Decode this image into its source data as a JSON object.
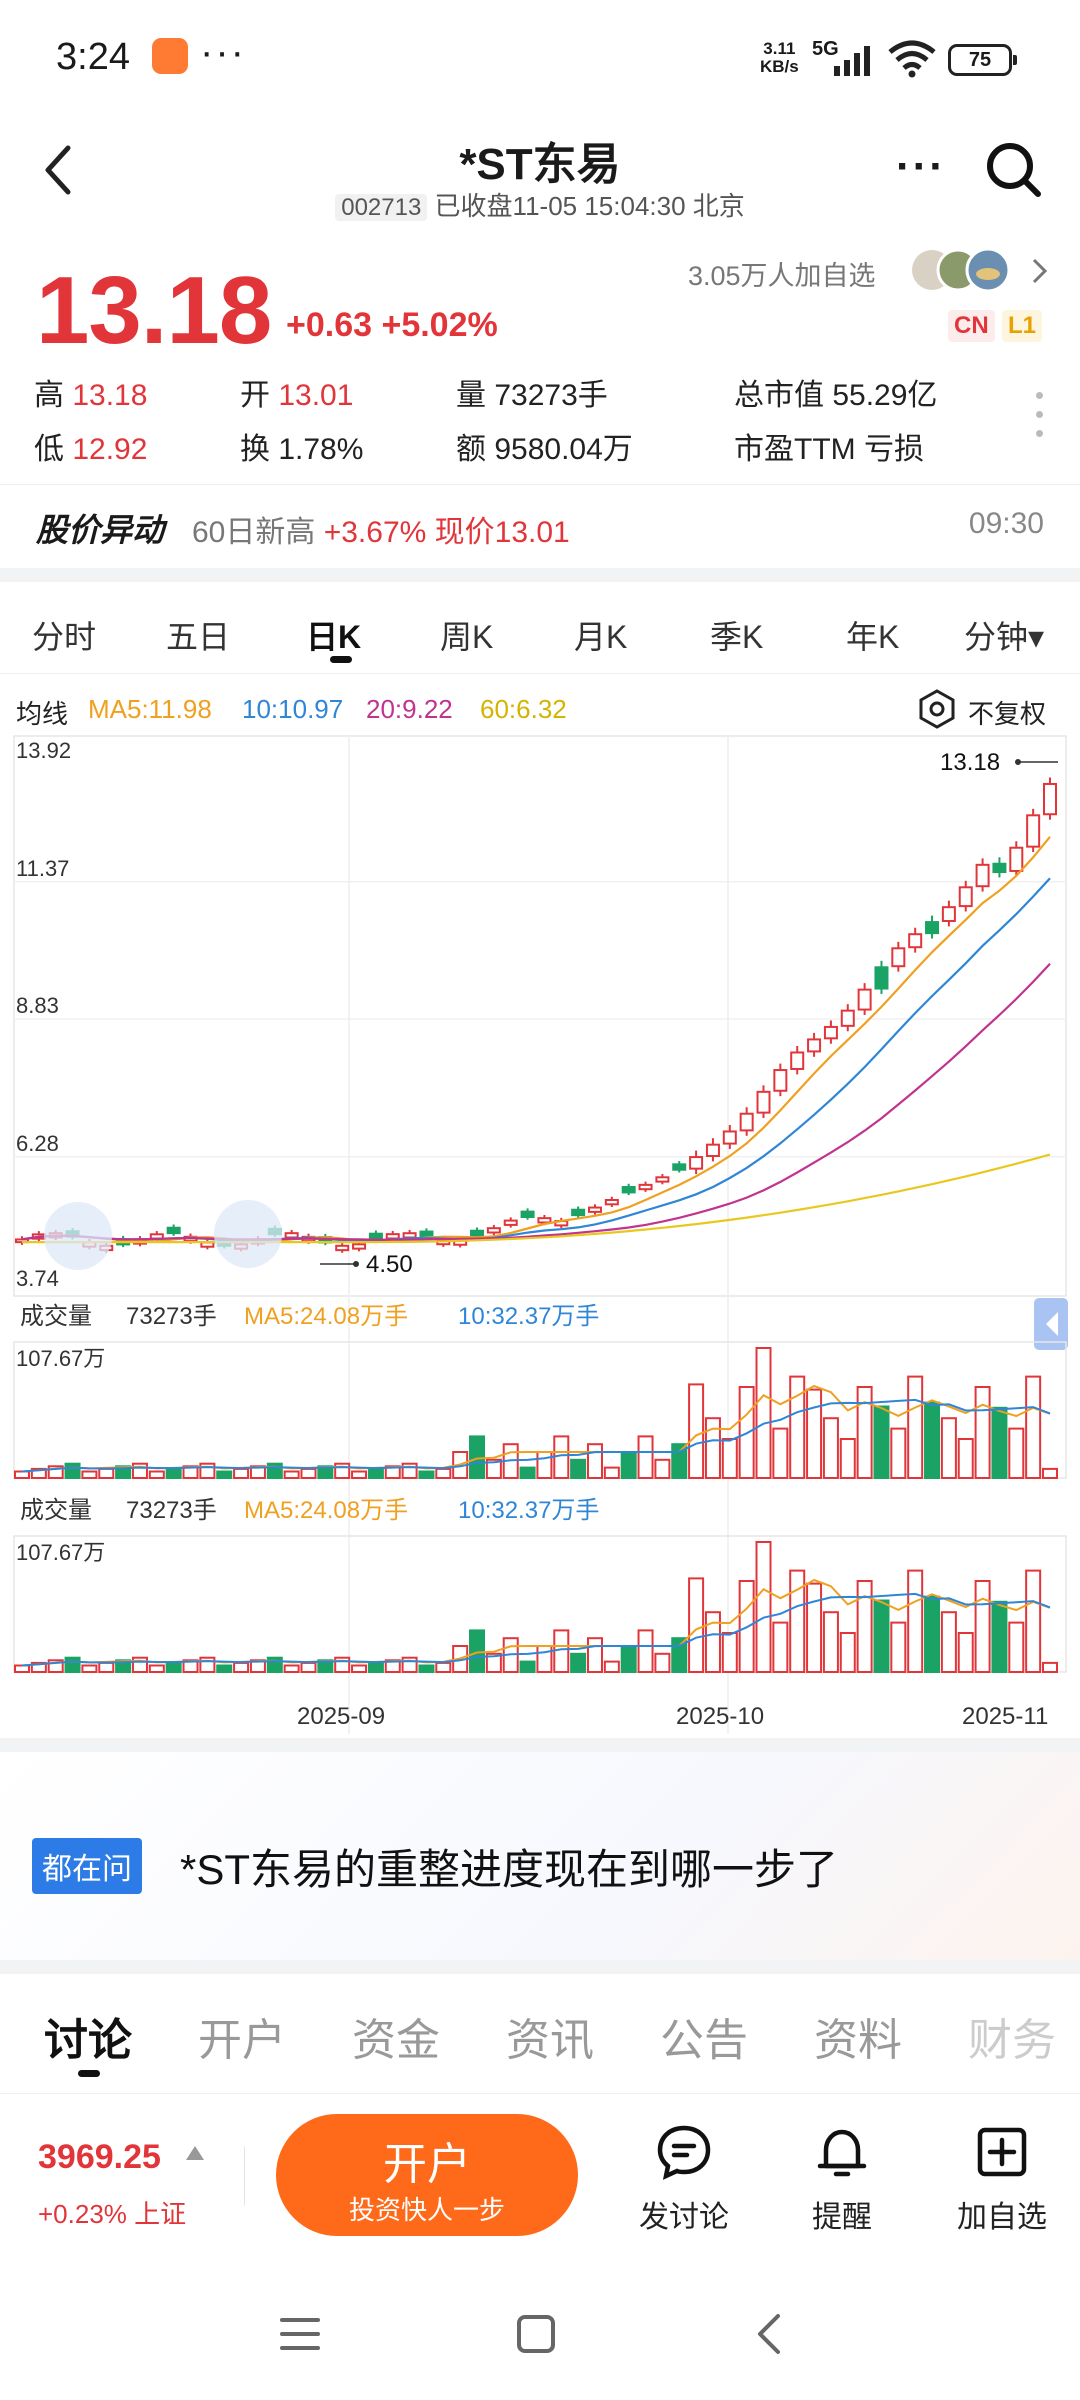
{
  "status_bar": {
    "time": "3:24",
    "more": "···",
    "speed": "3.11",
    "speed_unit": "KB/s",
    "network": "5G",
    "battery": "75"
  },
  "header": {
    "title": "*ST东易",
    "code": "002713",
    "status": "已收盘11-05 15:04:30 北京"
  },
  "quote": {
    "price": "13.18",
    "change": "+0.63 +5.02%",
    "followers": "3.05万人加自选",
    "tag_cn": "CN",
    "tag_l1": "L1",
    "high_label": "高",
    "high": "13.18",
    "low_label": "低",
    "low": "12.92",
    "open_label": "开",
    "open": "13.01",
    "turnover_label": "换",
    "turnover": "1.78%",
    "volume_label": "量",
    "volume": "73273手",
    "amount_label": "额",
    "amount": "9580.04万",
    "mktcap_label": "总市值",
    "mktcap": "55.29亿",
    "pe_label": "市盈TTM",
    "pe": "亏损"
  },
  "alert": {
    "label": "股价异动",
    "text": "60日新高",
    "pct": "+3.67% 现价13.01",
    "time": "09:30"
  },
  "k_tabs": [
    "分时",
    "五日",
    "日K",
    "周K",
    "月K",
    "季K",
    "年K",
    "分钟▾"
  ],
  "k_active": "日K",
  "ma_row": {
    "label": "均线",
    "ma5": "MA5:11.98",
    "ma10": "10:10.97",
    "ma20": "20:9.22",
    "ma60": "60:6.32",
    "adjust": "不复权"
  },
  "chart_data": {
    "type": "candlestick",
    "y_ticks": [
      "13.92",
      "11.37",
      "8.83",
      "6.28",
      "3.74"
    ],
    "ylim": [
      3.74,
      13.92
    ],
    "x_labels": [
      "2025-09",
      "2025-10",
      "2025-11"
    ],
    "max_label": "13.18",
    "min_label": "4.50",
    "colors": {
      "up": "#e2353a",
      "down": "#1aa364",
      "ma5": "#f0a020",
      "ma10": "#2f86d6",
      "ma20": "#c0338f",
      "ma60": "#e8c820"
    },
    "volume_panels": [
      {
        "label": "成交量",
        "vol": "73273手",
        "ma5": "MA5:24.08万手",
        "ma10": "10:32.37万手",
        "max": "107.67万"
      },
      {
        "label": "成交量",
        "vol": "73273手",
        "ma5": "MA5:24.08万手",
        "ma10": "10:32.37万手",
        "max": "107.67万"
      }
    ]
  },
  "faq": {
    "badge": "都在问",
    "question": "*ST东易的重整进度现在到哪一步了"
  },
  "bottom_tabs": [
    "讨论",
    "开户",
    "资金",
    "资讯",
    "公告",
    "资料",
    "财务"
  ],
  "footer": {
    "index_value": "3969.25",
    "index_change": "+0.23% 上证",
    "open_label": "开户",
    "open_sub": "投资快人一步",
    "discuss": "发讨论",
    "remind": "提醒",
    "add": "加自选"
  }
}
